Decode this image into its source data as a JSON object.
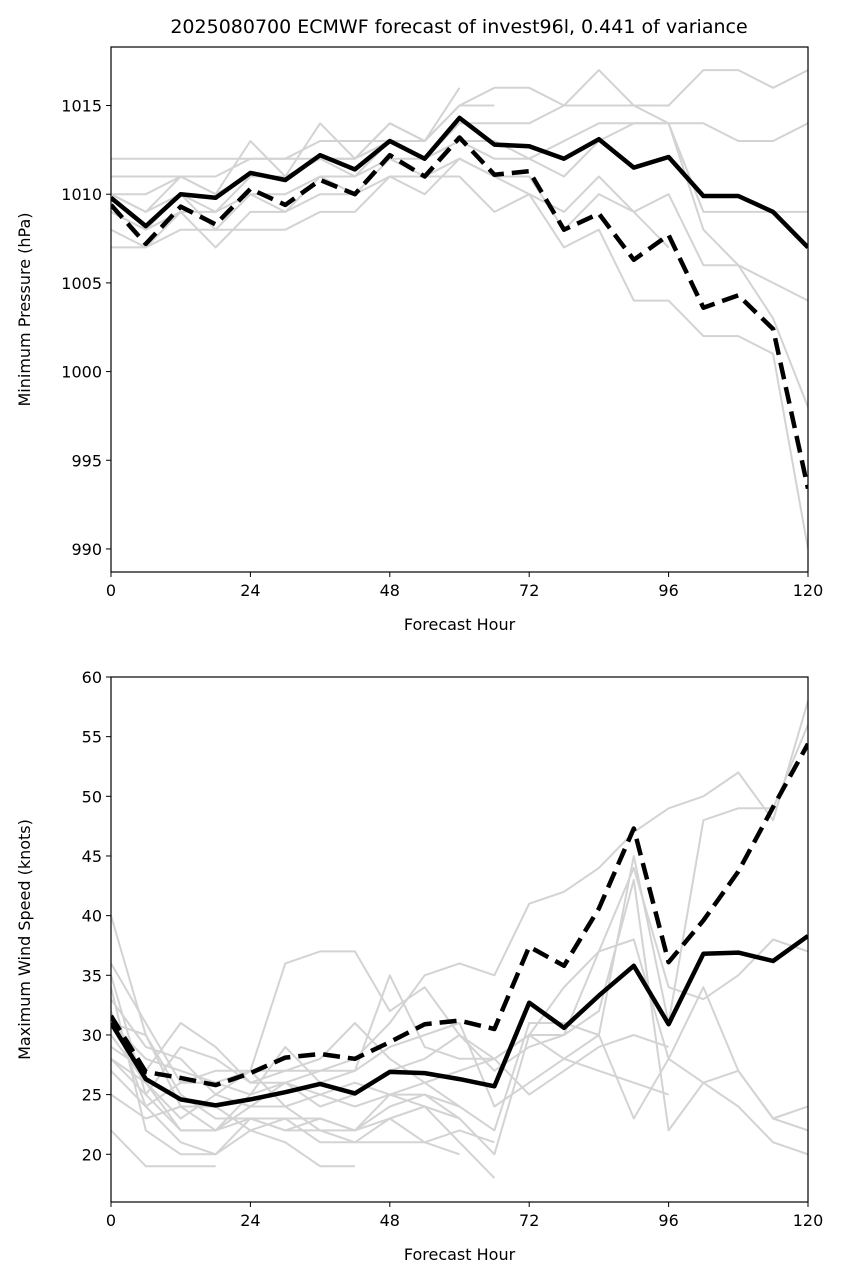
{
  "title": "2025080700 ECMWF forecast of invest96l, 0.441 of variance",
  "colors": {
    "ensemble": "#d3d3d3",
    "highlight": "#000000",
    "axes": "#000000"
  },
  "chart_data": [
    {
      "type": "line",
      "ylabel": "Minimum Pressure (hPa)",
      "xlabel": "Forecast Hour",
      "xlim": [
        0,
        120
      ],
      "ylim": [
        988.7,
        1018.3
      ],
      "xticks": [
        0,
        24,
        48,
        72,
        96,
        120
      ],
      "yticks": [
        990,
        995,
        1000,
        1005,
        1010,
        1015
      ],
      "x": [
        0,
        6,
        12,
        18,
        24,
        30,
        36,
        42,
        48,
        54,
        60,
        66,
        72,
        78,
        84,
        90,
        96,
        102,
        108,
        114,
        120
      ],
      "ensemble": [
        [
          1012,
          1012,
          1012,
          1012,
          1012,
          1012,
          1013,
          1013,
          1013,
          1013,
          1015,
          1015
        ],
        [
          1011,
          1011,
          1011,
          1011,
          1012,
          1012,
          1012,
          1012,
          1014,
          1013,
          1015,
          1016,
          1016,
          1015,
          1015,
          1015,
          1015,
          1017,
          1017,
          1016,
          1017
        ],
        [
          1010,
          1010,
          1011,
          1010,
          1011,
          1011,
          1012,
          1011,
          1013,
          1012,
          1014,
          1014,
          1014,
          1015,
          1017,
          1015,
          1014,
          1014,
          1013,
          1013,
          1014
        ],
        [
          1010,
          1009,
          1010,
          1009,
          1011,
          1011,
          1012,
          1012,
          1013,
          1012,
          1013,
          1013,
          1012,
          1013,
          1014,
          1014,
          1014,
          1009,
          1009,
          1009,
          1009
        ],
        [
          1009,
          1008,
          1009,
          1009,
          1010,
          1010,
          1011,
          1011,
          1012,
          1012,
          1013,
          1012,
          1012,
          1011,
          1013,
          1014,
          1014,
          1008,
          1006,
          1005,
          1004
        ],
        [
          1009,
          1008,
          1010,
          1008,
          1010,
          1009,
          1011,
          1010,
          1012,
          1011,
          1012,
          1011,
          1011,
          1008,
          1010,
          1009,
          1010,
          1006,
          1006,
          1003,
          998
        ],
        [
          1008,
          1007,
          1009,
          1007,
          1009,
          1009,
          1010,
          1010,
          1011,
          1010,
          1012,
          1011,
          1010,
          1007,
          1008,
          1004,
          1004,
          1002,
          1002,
          1001,
          990
        ],
        [
          1007,
          1007,
          1008,
          1008,
          1008,
          1008,
          1009,
          1009,
          1011,
          1011,
          1011,
          1009,
          1010,
          1009,
          1011,
          1009,
          1007
        ],
        [
          1010,
          1009,
          1011,
          1010,
          1013,
          1011,
          1014,
          1012,
          1014,
          1013,
          1016
        ]
      ],
      "series": [
        {
          "style": "solid",
          "values": [
            1009.8,
            1008.2,
            1010.0,
            1009.8,
            1011.2,
            1010.8,
            1012.2,
            1011.4,
            1013.0,
            1012.0,
            1014.3,
            1012.8,
            1012.7,
            1012.0,
            1013.1,
            1011.5,
            1012.1,
            1009.9,
            1009.9,
            1009.0,
            1007.0
          ]
        },
        {
          "style": "dashed",
          "values": [
            1009.4,
            1007.2,
            1009.3,
            1008.3,
            1010.3,
            1009.4,
            1010.8,
            1010.0,
            1012.2,
            1011.0,
            1013.2,
            1011.1,
            1011.3,
            1008.0,
            1008.9,
            1006.3,
            1007.7,
            1003.6,
            1004.3,
            1002.4,
            993.4
          ]
        }
      ]
    },
    {
      "type": "line",
      "ylabel": "Maximum Wind Speed (knots)",
      "xlabel": "Forecast Hour",
      "xlim": [
        0,
        120
      ],
      "ylim": [
        16,
        60
      ],
      "xticks": [
        0,
        24,
        48,
        72,
        96,
        120
      ],
      "yticks": [
        20,
        25,
        30,
        35,
        40,
        45,
        50,
        55,
        60
      ],
      "x": [
        0,
        6,
        12,
        18,
        24,
        30,
        36,
        42,
        48,
        54,
        60,
        66,
        72,
        78,
        84,
        90,
        96,
        102,
        108,
        114,
        120
      ],
      "ensemble": [
        [
          40,
          30,
          24,
          22,
          25,
          29,
          26,
          27,
          35,
          29,
          28,
          28,
          30,
          30,
          37,
          38,
          28,
          34,
          27,
          23,
          22
        ],
        [
          36,
          31,
          26,
          26,
          27,
          27,
          27,
          28,
          31,
          35,
          36,
          35,
          41,
          42,
          44,
          47,
          49,
          50,
          52,
          48,
          58
        ],
        [
          33,
          29,
          28,
          25,
          27,
          36,
          37,
          37,
          32,
          34,
          30,
          28,
          30,
          34,
          37,
          44,
          34,
          33,
          35,
          38,
          37
        ],
        [
          31,
          28,
          27,
          26,
          25,
          26,
          27,
          27,
          29,
          30,
          31,
          24,
          26,
          28,
          30,
          45,
          31,
          48,
          49,
          49,
          56
        ],
        [
          30,
          26,
          23,
          25,
          24,
          26,
          24,
          25,
          27,
          28,
          30,
          27,
          29,
          30,
          32,
          43,
          22,
          26,
          24,
          21,
          20
        ],
        [
          29,
          27,
          31,
          29,
          26,
          26,
          25,
          24,
          25,
          26,
          27,
          28,
          25,
          27,
          29,
          30,
          29
        ],
        [
          28,
          25,
          29,
          28,
          26,
          27,
          28,
          31,
          28,
          26,
          24,
          22,
          31,
          31,
          30,
          23,
          28,
          26,
          27,
          23,
          24
        ],
        [
          27,
          24,
          26,
          27,
          27,
          24,
          25,
          26,
          25,
          24,
          23,
          20,
          30,
          28,
          27,
          26,
          25
        ],
        [
          35,
          25,
          22,
          22,
          23,
          22,
          22,
          21,
          21,
          21,
          22,
          21
        ],
        [
          34,
          22,
          20,
          20,
          23,
          23,
          21,
          21,
          23,
          21,
          20
        ],
        [
          32,
          24,
          21,
          20,
          22,
          21,
          19,
          19
        ],
        [
          25,
          23,
          24,
          24,
          22,
          23,
          23,
          22,
          25,
          25,
          24
        ],
        [
          22,
          19,
          19,
          19
        ],
        [
          31,
          30,
          25,
          23,
          23,
          22,
          23,
          22,
          24,
          25,
          23
        ],
        [
          28,
          26,
          22,
          22,
          24,
          24,
          22,
          22,
          23,
          24,
          21,
          18
        ]
      ],
      "series": [
        {
          "style": "solid",
          "values": [
            31.0,
            26.3,
            24.6,
            24.1,
            24.6,
            25.2,
            25.9,
            25.1,
            26.9,
            26.8,
            26.3,
            25.7,
            32.7,
            30.6,
            33.3,
            35.8,
            30.9,
            36.8,
            36.9,
            36.2,
            38.3
          ]
        },
        {
          "style": "dashed",
          "values": [
            31.6,
            26.9,
            26.4,
            25.8,
            26.8,
            28.1,
            28.4,
            28.0,
            29.4,
            30.9,
            31.2,
            30.5,
            37.4,
            35.8,
            40.6,
            47.3,
            36.1,
            39.6,
            43.7,
            49.1,
            54.4
          ]
        }
      ]
    }
  ]
}
